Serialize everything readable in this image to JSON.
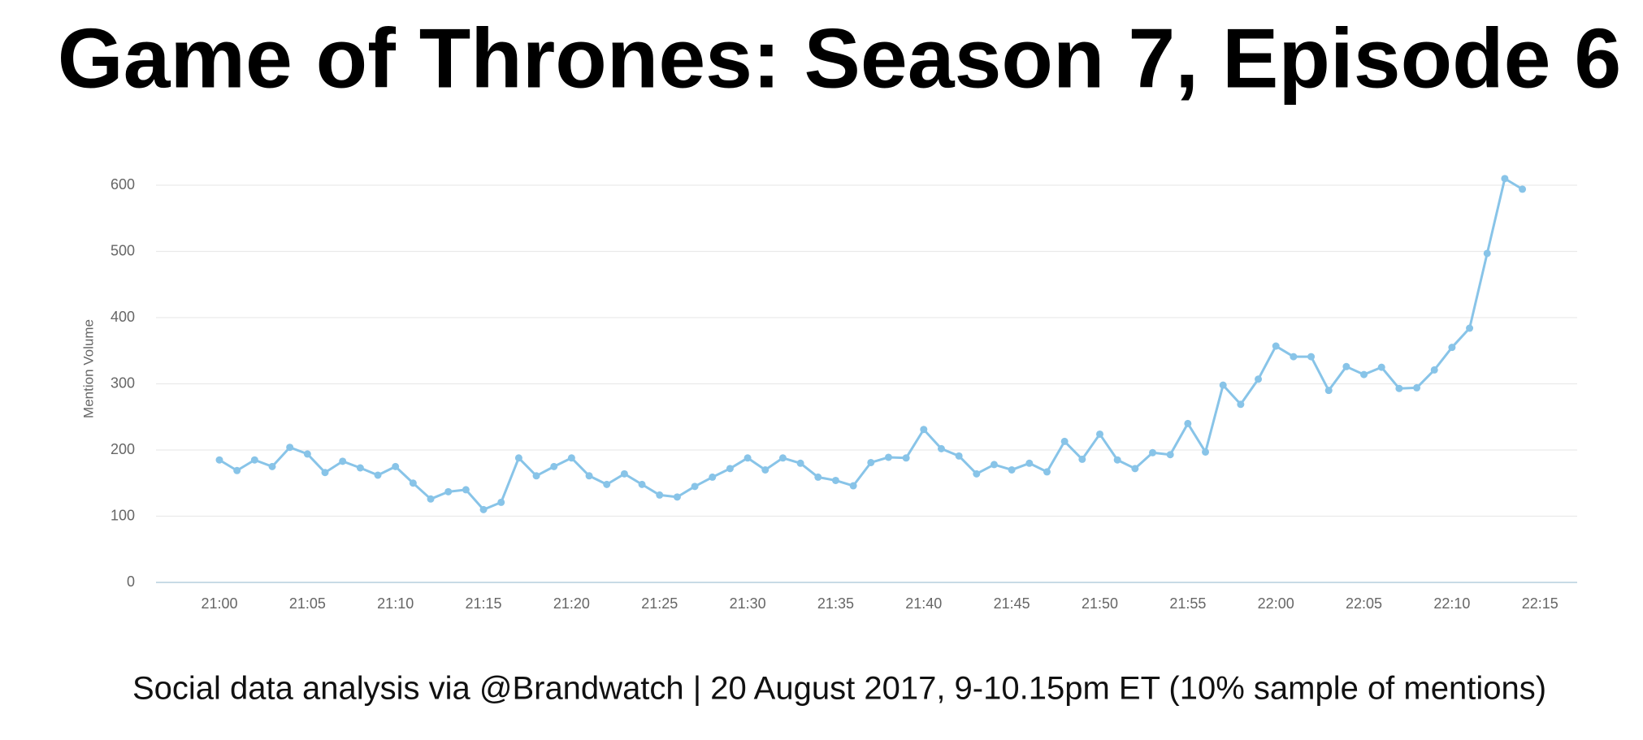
{
  "chart_data": {
    "type": "line",
    "title": "Game of Thrones: Season 7, Episode 6",
    "caption": "Social data analysis via @Brandwatch | 20 August 2017, 9-10.15pm ET (10% sample of mentions)",
    "y_label": "Mention Volume",
    "categories": [
      "21:00",
      null,
      null,
      null,
      null,
      "21:05",
      null,
      null,
      null,
      null,
      "21:10",
      null,
      null,
      null,
      null,
      "21:15",
      null,
      null,
      null,
      null,
      "21:20",
      null,
      null,
      null,
      null,
      "21:25",
      null,
      null,
      null,
      null,
      "21:30",
      null,
      null,
      null,
      null,
      "21:35",
      null,
      null,
      null,
      null,
      "21:40",
      null,
      null,
      null,
      null,
      "21:45",
      null,
      null,
      null,
      null,
      "21:50",
      null,
      null,
      null,
      null,
      "21:55",
      null,
      null,
      null,
      null,
      "22:00",
      null,
      null,
      null,
      null,
      "22:05",
      null,
      null,
      null,
      null,
      "22:10",
      null,
      null,
      null,
      null,
      "22:15"
    ],
    "series": [
      {
        "color": "#88c4e8",
        "values": [
          185,
          169,
          185,
          175,
          204,
          194,
          166,
          183,
          173,
          162,
          175,
          150,
          126,
          137,
          140,
          110,
          121,
          188,
          161,
          175,
          188,
          161,
          148,
          164,
          148,
          132,
          129,
          145,
          159,
          172,
          188,
          170,
          188,
          180,
          159,
          154,
          146,
          181,
          189,
          188,
          231,
          202,
          191,
          164,
          178,
          170,
          180,
          167,
          213,
          186,
          224,
          185,
          172,
          196,
          193,
          240,
          197,
          298,
          269,
          307,
          357,
          341,
          341,
          290,
          326,
          314,
          325,
          293,
          294,
          321,
          355,
          384,
          497,
          610,
          594,
          null
        ]
      }
    ],
    "ylim": [
      0,
      600
    ],
    "yticks": [
      0,
      100,
      200,
      300,
      400,
      500,
      600
    ],
    "grid": true
  }
}
